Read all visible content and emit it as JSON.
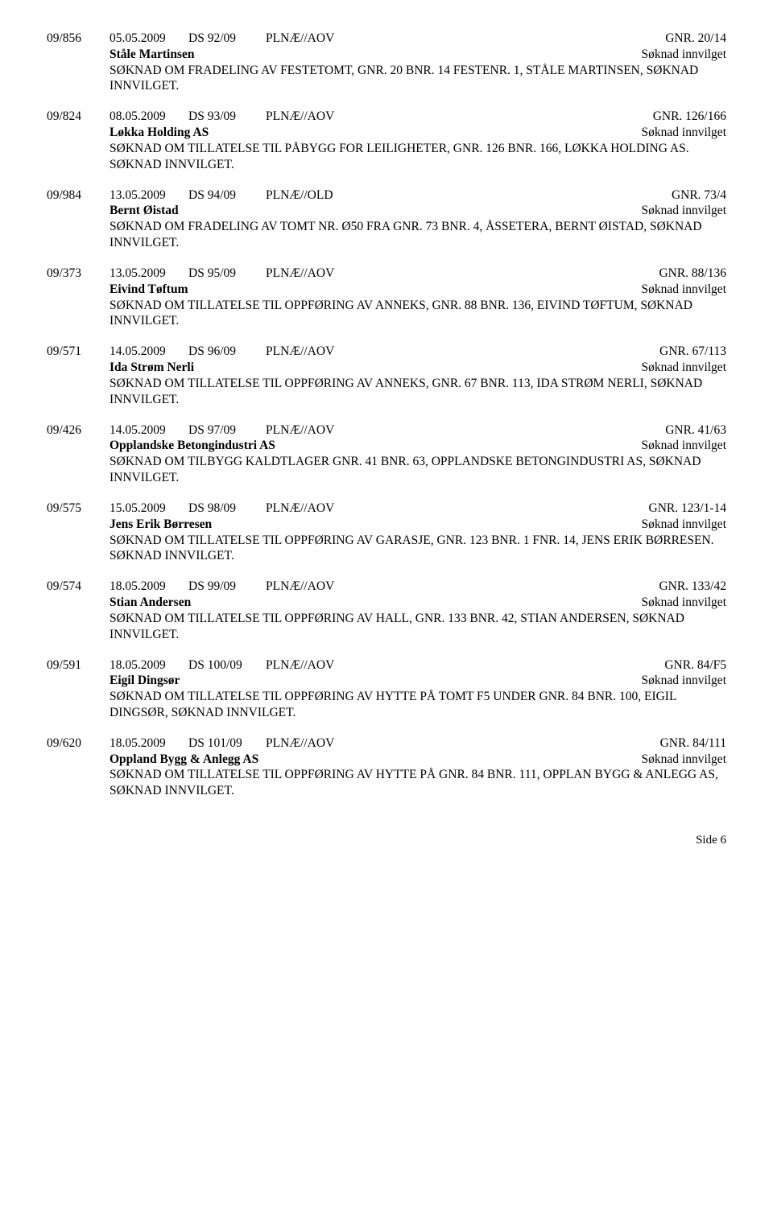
{
  "entries": [
    {
      "caseRef": "09/856",
      "date": "05.05.2009",
      "dsRef": "DS  92/09",
      "code": "PLNÆ//AOV",
      "gnr": "GNR. 20/14",
      "applicant": "Ståle Martinsen",
      "status": "Søknad innvilget",
      "desc": "SØKNAD OM FRADELING AV FESTETOMT, GNR. 20 BNR. 14 FESTENR. 1, STÅLE MARTINSEN, SØKNAD INNVILGET."
    },
    {
      "caseRef": "09/824",
      "date": "08.05.2009",
      "dsRef": "DS  93/09",
      "code": "PLNÆ//AOV",
      "gnr": "GNR. 126/166",
      "applicant": "Løkka Holding AS",
      "status": "Søknad innvilget",
      "desc": "SØKNAD OM TILLATELSE TIL PÅBYGG FOR LEILIGHETER, GNR. 126 BNR. 166, LØKKA HOLDING AS. SØKNAD INNVILGET."
    },
    {
      "caseRef": "09/984",
      "date": "13.05.2009",
      "dsRef": "DS  94/09",
      "code": "PLNÆ//OLD",
      "gnr": "GNR. 73/4",
      "applicant": "Bernt Øistad",
      "status": "Søknad innvilget",
      "desc": "SØKNAD OM FRADELING AV TOMT NR. Ø50 FRA GNR. 73 BNR. 4, ÅSSETERA, BERNT ØISTAD, SØKNAD INNVILGET."
    },
    {
      "caseRef": "09/373",
      "date": "13.05.2009",
      "dsRef": "DS  95/09",
      "code": "PLNÆ//AOV",
      "gnr": "GNR. 88/136",
      "applicant": "Eivind Tøftum",
      "status": "Søknad innvilget",
      "desc": "SØKNAD OM TILLATELSE TIL OPPFØRING AV ANNEKS, GNR. 88 BNR. 136, EIVIND TØFTUM, SØKNAD INNVILGET."
    },
    {
      "caseRef": "09/571",
      "date": "14.05.2009",
      "dsRef": "DS  96/09",
      "code": "PLNÆ//AOV",
      "gnr": "GNR. 67/113",
      "applicant": "Ida Strøm Nerli",
      "status": "Søknad innvilget",
      "desc": "SØKNAD OM TILLATELSE TIL OPPFØRING AV ANNEKS, GNR. 67 BNR. 113, IDA STRØM NERLI, SØKNAD INNVILGET."
    },
    {
      "caseRef": "09/426",
      "date": "14.05.2009",
      "dsRef": "DS  97/09",
      "code": "PLNÆ//AOV",
      "gnr": "GNR. 41/63",
      "applicant": "Opplandske Betongindustri AS",
      "status": "Søknad innvilget",
      "desc": "SØKNAD OM TILBYGG KALDTLAGER GNR. 41 BNR. 63, OPPLANDSKE BETONGINDUSTRI AS, SØKNAD INNVILGET."
    },
    {
      "caseRef": "09/575",
      "date": "15.05.2009",
      "dsRef": "DS  98/09",
      "code": "PLNÆ//AOV",
      "gnr": "GNR. 123/1-14",
      "applicant": "Jens Erik Børresen",
      "status": "Søknad innvilget",
      "desc": "SØKNAD OM TILLATELSE TIL OPPFØRING AV GARASJE, GNR. 123 BNR. 1 FNR. 14, JENS ERIK BØRRESEN. SØKNAD INNVILGET."
    },
    {
      "caseRef": "09/574",
      "date": "18.05.2009",
      "dsRef": "DS  99/09",
      "code": "PLNÆ//AOV",
      "gnr": "GNR. 133/42",
      "applicant": "Stian Andersen",
      "status": "Søknad innvilget",
      "desc": "SØKNAD OM TILLATELSE TIL OPPFØRING AV HALL, GNR. 133 BNR. 42, STIAN ANDERSEN, SØKNAD INNVILGET."
    },
    {
      "caseRef": "09/591",
      "date": "18.05.2009",
      "dsRef": "DS  100/09",
      "code": "PLNÆ//AOV",
      "gnr": "GNR. 84/F5",
      "applicant": "Eigil Dingsør",
      "status": "Søknad innvilget",
      "desc": "SØKNAD OM TILLATELSE TIL OPPFØRING AV HYTTE PÅ TOMT F5 UNDER GNR. 84 BNR. 100, EIGIL DINGSØR, SØKNAD INNVILGET."
    },
    {
      "caseRef": "09/620",
      "date": "18.05.2009",
      "dsRef": "DS  101/09",
      "code": "PLNÆ//AOV",
      "gnr": "GNR. 84/111",
      "applicant": "Oppland Bygg & Anlegg AS",
      "status": "Søknad innvilget",
      "desc": "SØKNAD OM TILLATELSE TIL OPPFØRING AV HYTTE PÅ GNR. 84 BNR. 111, OPPLAN BYGG & ANLEGG AS, SØKNAD INNVILGET."
    }
  ],
  "footer": "Side 6"
}
